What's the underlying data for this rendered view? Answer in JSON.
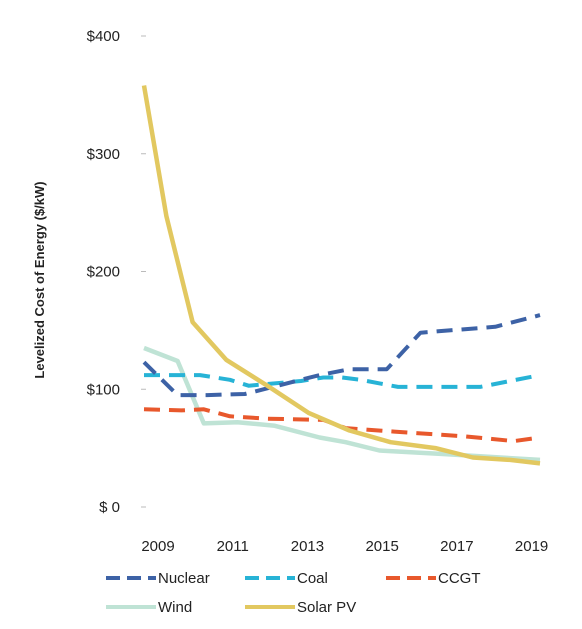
{
  "chart_data": {
    "type": "line",
    "ylabel": "Levelized Cost of Energy ($/kW)",
    "ylim": [
      0,
      400
    ],
    "yticks": [
      {
        "value": 400,
        "label": "$400"
      },
      {
        "value": 300,
        "label": "$300"
      },
      {
        "value": 200,
        "label": "$200"
      },
      {
        "value": 100,
        "label": "$100"
      },
      {
        "value": 0,
        "label": "$ 0"
      }
    ],
    "xlim": [
      2009,
      2019.6
    ],
    "xticks": [
      {
        "value": 2009,
        "label": "2009"
      },
      {
        "value": 2011,
        "label": "2011"
      },
      {
        "value": 2013,
        "label": "2013"
      },
      {
        "value": 2015,
        "label": "2015"
      },
      {
        "value": 2017,
        "label": "2017"
      },
      {
        "value": 2019,
        "label": "2019"
      }
    ],
    "grid": false,
    "legend_position": "bottom",
    "series": [
      {
        "name": "Nuclear",
        "color": "#3d62a6",
        "dash": "dashed",
        "x": [
          2009,
          2009.9,
          2010.7,
          2011.7,
          2013.7,
          2014.5,
          2015.5,
          2016.4,
          2018.4,
          2019.6
        ],
        "y": [
          123,
          95,
          95,
          96,
          112,
          117,
          117,
          148,
          153,
          163
        ]
      },
      {
        "name": "Coal",
        "color": "#27b3d6",
        "dash": "dashed",
        "x": [
          2009,
          2010.5,
          2011.3,
          2011.8,
          2013.2,
          2013.8,
          2014.3,
          2014.8,
          2015.8,
          2018.0,
          2019.6
        ],
        "y": [
          112,
          112,
          108,
          103,
          107,
          110,
          110,
          108,
          102,
          102,
          112
        ]
      },
      {
        "name": "CCGT",
        "color": "#e8582c",
        "dash": "dashed",
        "x": [
          2009,
          2010,
          2010.6,
          2011.3,
          2012.3,
          2013.8,
          2014.4,
          2015.7,
          2017.6,
          2018.9,
          2019.6
        ],
        "y": [
          83,
          82,
          83,
          77,
          75,
          74,
          67,
          64,
          60,
          56,
          59
        ]
      },
      {
        "name": "Wind",
        "color": "#bfe3d5",
        "dash": "solid",
        "x": [
          2009,
          2009.9,
          2010.6,
          2011.5,
          2012.5,
          2013.7,
          2014.4,
          2015.3,
          2017.0,
          2019.6
        ],
        "y": [
          135,
          124,
          71,
          72,
          69,
          59,
          55,
          48,
          45,
          40
        ]
      },
      {
        "name": "Solar PV",
        "color": "#e2c860",
        "dash": "solid",
        "x": [
          2009,
          2009.6,
          2010.3,
          2011.2,
          2012.3,
          2013.4,
          2014.5,
          2015.6,
          2016.8,
          2017.8,
          2018.8,
          2019.6
        ],
        "y": [
          358,
          247,
          157,
          125,
          103,
          80,
          65,
          55,
          50,
          42,
          40,
          37
        ]
      }
    ]
  }
}
